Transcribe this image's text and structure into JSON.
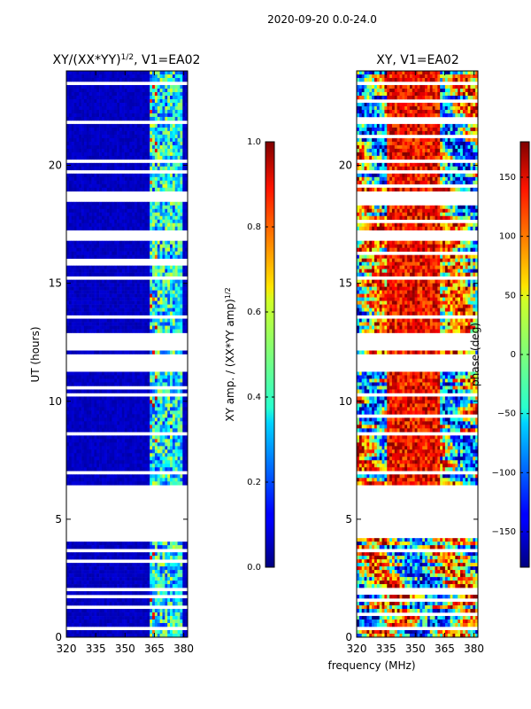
{
  "suptitle": "2020-09-20 0.0-24.0",
  "chart_data": [
    {
      "type": "heatmap",
      "title_prefix": "XY/(XX*YY)",
      "title_exp": "1/2",
      "title_suffix": ", V1=EA02",
      "xlabel": "",
      "ylabel": "UT (hours)",
      "xlim": [
        320,
        382
      ],
      "ylim": [
        0,
        24
      ],
      "xticks": [
        320,
        335,
        350,
        365,
        380
      ],
      "yticks": [
        0,
        5,
        10,
        15,
        20
      ],
      "colorbar": {
        "label_main": "XY amp. / (XX*YY amp)",
        "label_exp": "1/2",
        "range": [
          0.0,
          1.0
        ],
        "ticks": [
          "0.0",
          "0.2",
          "0.4",
          "0.6",
          "0.8",
          "1.0"
        ],
        "colormap": "jet"
      },
      "blank_hours": [
        [
          4.2,
          6.5
        ],
        [
          12.2,
          12.9
        ],
        [
          11.3,
          11.8
        ],
        [
          16.9,
          17.3
        ],
        [
          18.6,
          18.9
        ]
      ]
    },
    {
      "type": "heatmap",
      "title": "XY, V1=EA02",
      "xlabel": "frequency (MHz)",
      "ylabel": "",
      "xlim": [
        320,
        382
      ],
      "ylim": [
        0,
        24
      ],
      "xticks": [
        320,
        335,
        350,
        365,
        380
      ],
      "yticks": [
        0,
        5,
        10,
        15,
        20
      ],
      "colorbar": {
        "label": "phase (deg)",
        "range": [
          -180,
          180
        ],
        "ticks": [
          "−150",
          "−100",
          "−50",
          "0",
          "50",
          "100",
          "150"
        ],
        "tick_values": [
          -150,
          -100,
          -50,
          0,
          50,
          100,
          150
        ],
        "colormap": "jet"
      },
      "blank_hours": [
        [
          4.2,
          6.5
        ],
        [
          12.2,
          12.9
        ],
        [
          11.3,
          11.8
        ],
        [
          16.9,
          17.3
        ],
        [
          18.6,
          18.9
        ]
      ]
    }
  ]
}
